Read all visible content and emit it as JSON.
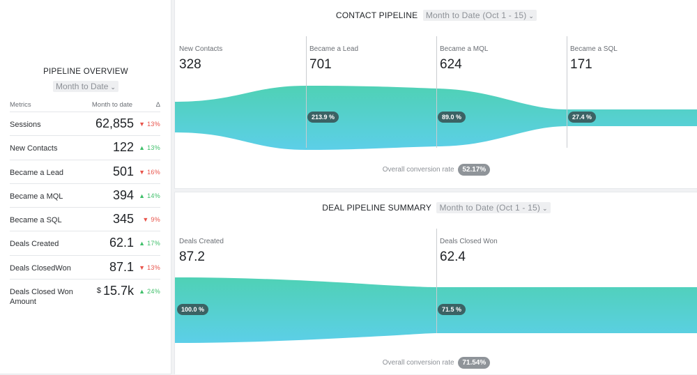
{
  "overview": {
    "title": "PIPELINE OVERVIEW",
    "period": "Month to Date",
    "headers": {
      "metric": "Metrics",
      "value": "Month to date",
      "delta": "Δ"
    },
    "rows": [
      {
        "label": "Sessions",
        "prefix": "",
        "value": "62,855",
        "delta": "▼ 13%",
        "dir": "down"
      },
      {
        "label": "New Contacts",
        "prefix": "",
        "value": "122",
        "delta": "▲ 13%",
        "dir": "up"
      },
      {
        "label": "Became a Lead",
        "prefix": "",
        "value": "501",
        "delta": "▼ 16%",
        "dir": "down"
      },
      {
        "label": "Became a MQL",
        "prefix": "",
        "value": "394",
        "delta": "▲ 14%",
        "dir": "up"
      },
      {
        "label": "Became a SQL",
        "prefix": "",
        "value": "345",
        "delta": "▼ 9%",
        "dir": "down"
      },
      {
        "label": "Deals Created",
        "prefix": "",
        "value": "62.1",
        "delta": "▲ 17%",
        "dir": "up"
      },
      {
        "label": "Deals ClosedWon",
        "prefix": "",
        "value": "87.1",
        "delta": "▼ 13%",
        "dir": "down"
      },
      {
        "label": "Deals Closed Won Amount",
        "prefix": "$",
        "value": "15.7k",
        "delta": "▲ 24%",
        "dir": "up"
      }
    ]
  },
  "contact": {
    "title": "CONTACT PIPELINE",
    "period": "Month to Date (Oct 1 - 15)",
    "stages": [
      {
        "label": "New Contacts",
        "value": "328",
        "rate": ""
      },
      {
        "label": "Became a Lead",
        "value": "701",
        "rate": "213.9 %"
      },
      {
        "label": "Became a MQL",
        "value": "624",
        "rate": "89.0 %"
      },
      {
        "label": "Became a SQL",
        "value": "171",
        "rate": "27.4 %"
      }
    ],
    "conversion_label": "Overall conversion rate",
    "conversion_value": "52.17%"
  },
  "deal": {
    "title": "DEAL PIPELINE SUMMARY",
    "period": "Month to Date (Oct 1 - 15)",
    "stages": [
      {
        "label": "Deals Created",
        "value": "87.2",
        "rate": "100.0 %"
      },
      {
        "label": "Deals Closed Won",
        "value": "62.4",
        "rate": "71.5 %"
      }
    ],
    "conversion_label": "Overall conversion rate",
    "conversion_value": "71.54%"
  },
  "colors": {
    "flow_top": "#4fd1b5",
    "flow_bottom": "#5ccfe8",
    "pill": "#3b6264",
    "down": "#e8534a",
    "up": "#3fbf6a"
  }
}
